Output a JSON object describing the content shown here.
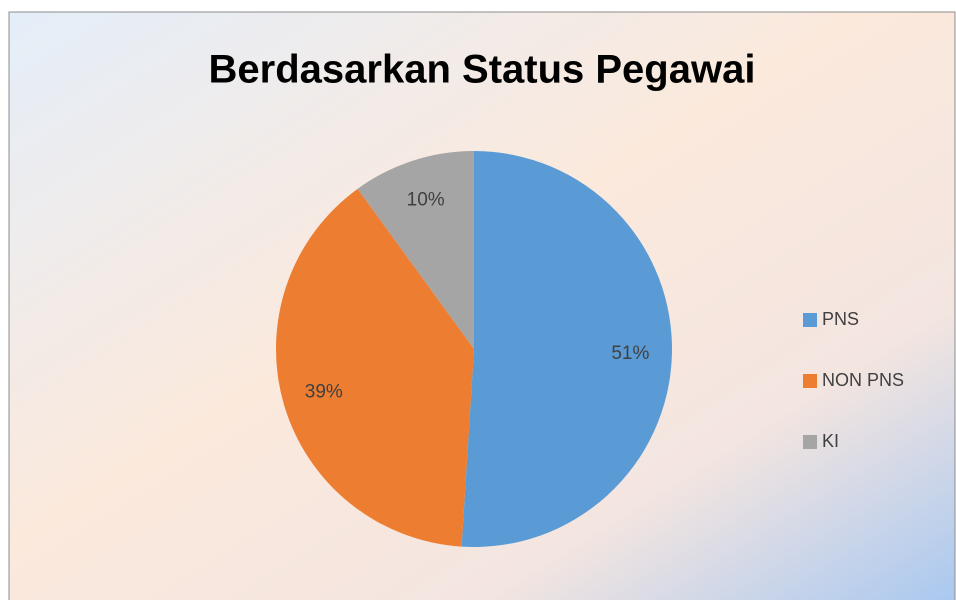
{
  "chart_data": {
    "type": "pie",
    "title": "Berdasarkan Status Pegawai",
    "categories": [
      "PNS",
      "NON PNS",
      "KI"
    ],
    "values": [
      51,
      39,
      10
    ],
    "value_labels": [
      "51%",
      "39%",
      "10%"
    ],
    "colors": [
      "#5b9bd5",
      "#ed7d31",
      "#a5a5a5"
    ],
    "legend": "right"
  }
}
